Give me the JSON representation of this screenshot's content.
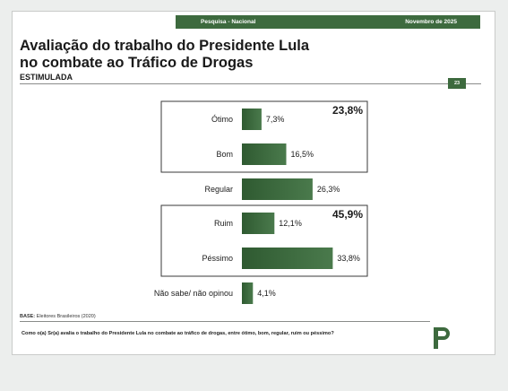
{
  "header": {
    "left_label": "Pesquisa - Nacional",
    "right_label": "Novembro de 2025"
  },
  "title_line1": "Avaliação do trabalho do Presidente Lula",
  "title_line2": "no combate ao Tráfico de Drogas",
  "subtitle": "ESTIMULADA",
  "page_number": "23",
  "chart_data": {
    "type": "bar",
    "orientation": "horizontal",
    "categories": [
      "Ótimo",
      "Bom",
      "Regular",
      "Ruim",
      "Péssimo",
      "Não sabe/ não opinou"
    ],
    "values": [
      7.3,
      16.5,
      26.3,
      12.1,
      33.8,
      4.1
    ],
    "value_labels": [
      "7,3%",
      "16,5%",
      "26,3%",
      "12,1%",
      "33,8%",
      "4,1%"
    ],
    "groups": [
      {
        "label": "23,8%",
        "categories": [
          "Ótimo",
          "Bom"
        ]
      },
      {
        "label": "45,9%",
        "categories": [
          "Ruim",
          "Péssimo"
        ]
      }
    ],
    "bar_color": "#4a7a4c",
    "xlim": [
      0,
      40
    ]
  },
  "base_label": "BASE:",
  "base_text": "Eleitores Brasileiros (2020)",
  "question": "Como o(a) Sr(a) avalia o trabalho do Presidente Lula no combate ao tráfico de drogas, entre ótimo, bom, regular, ruim ou péssimo?",
  "brand_color": "#3d6a3e"
}
